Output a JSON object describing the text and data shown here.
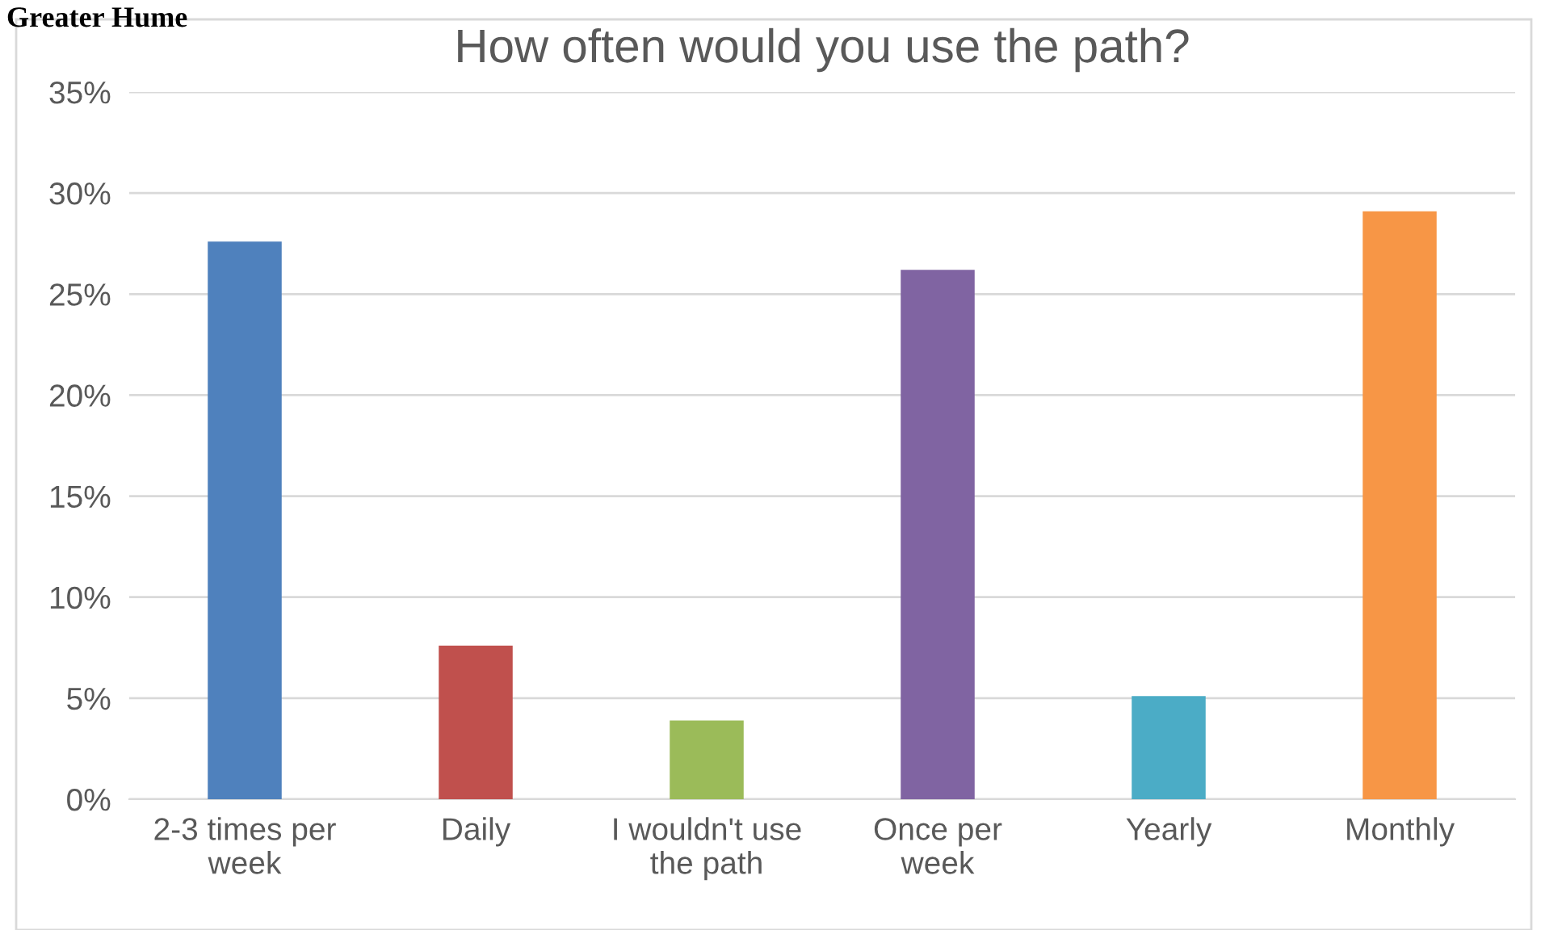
{
  "chart_data": {
    "type": "bar",
    "title": "How often would you use the path?",
    "annotations": [
      "Greater Hume"
    ],
    "categories": [
      "2-3 times per\nweek",
      "Daily",
      "I wouldn't use\nthe path",
      "Once per\nweek",
      "Yearly",
      "Monthly"
    ],
    "values": [
      27.6,
      7.6,
      3.9,
      26.2,
      5.1,
      29.1
    ],
    "colors": [
      "#4f81bd",
      "#c0504d",
      "#9bbb59",
      "#8064a2",
      "#4bacc6",
      "#f79646"
    ],
    "ylim": [
      0,
      35
    ],
    "yticks": [
      {
        "value": 0,
        "label": "0%"
      },
      {
        "value": 5,
        "label": "5%"
      },
      {
        "value": 10,
        "label": "10%"
      },
      {
        "value": 15,
        "label": "15%"
      },
      {
        "value": 20,
        "label": "20%"
      },
      {
        "value": 25,
        "label": "25%"
      },
      {
        "value": 30,
        "label": "30%"
      },
      {
        "value": 35,
        "label": "35%"
      }
    ],
    "grid": "y",
    "legend": false
  }
}
